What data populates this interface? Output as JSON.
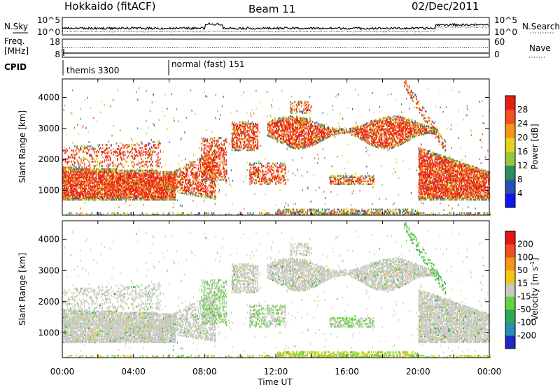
{
  "header": {
    "station": "Hokkaido (fitACF)",
    "beam": "Beam 11",
    "date": "02/Dec/2011"
  },
  "top_strip": {
    "left_label": "N.Sky",
    "left_ticks": [
      "10^5",
      "10^0"
    ],
    "right_ticks": [
      "10^5",
      "10^0"
    ],
    "right_label": "N.Search"
  },
  "freq_strip": {
    "left_label_1": "Freq.",
    "left_label_2": "[MHz]",
    "left_ticks": [
      "18",
      "8"
    ],
    "right_ticks": [
      "60",
      "0"
    ],
    "right_label": "Nave"
  },
  "cpid_strip": {
    "label": "CPID",
    "segments": [
      {
        "text": "themis 3300",
        "start_hour": 0
      },
      {
        "text": "normal (fast) 151",
        "start_hour": 6
      }
    ]
  },
  "chart_data": [
    {
      "type": "heatmap",
      "name": "power-panel",
      "ylabel": "Slant Range [km]",
      "xlabel": "",
      "x_range_hours": [
        0,
        24
      ],
      "ylim": [
        200,
        4600
      ],
      "yticks": [
        1000,
        2000,
        3000,
        4000
      ],
      "colorbar": {
        "label": "Power [dB]",
        "ticks": [
          "4",
          "8",
          "12",
          "16",
          "20",
          "24",
          "28"
        ],
        "colors": [
          "#1414f0",
          "#2850b4",
          "#2e8c5a",
          "#96c83c",
          "#e6d21e",
          "#f59614",
          "#f5501e",
          "#e61e14"
        ]
      }
    },
    {
      "type": "heatmap",
      "name": "velocity-panel",
      "ylabel": "Slant Range [km]",
      "xlabel": "Time UT",
      "x_range_hours": [
        0,
        24
      ],
      "xticks": [
        "00:00",
        "04:00",
        "08:00",
        "12:00",
        "16:00",
        "20:00",
        "00:00"
      ],
      "ylim": [
        200,
        4600
      ],
      "yticks": [
        1000,
        2000,
        3000,
        4000
      ],
      "colorbar": {
        "label": "Velocity [m s-1]",
        "label_main": "Velocity [m s",
        "label_sup": "-1",
        "label_end": "]",
        "ticks": [
          "200",
          "100",
          "50",
          "15",
          "-15",
          "-50",
          "-100",
          "-200"
        ],
        "colors": [
          "#1e28c8",
          "#288cb4",
          "#2eaa50",
          "#64d23c",
          "#c8c8c0",
          "#f0c814",
          "#f59614",
          "#f0501e",
          "#e61414"
        ]
      }
    }
  ]
}
